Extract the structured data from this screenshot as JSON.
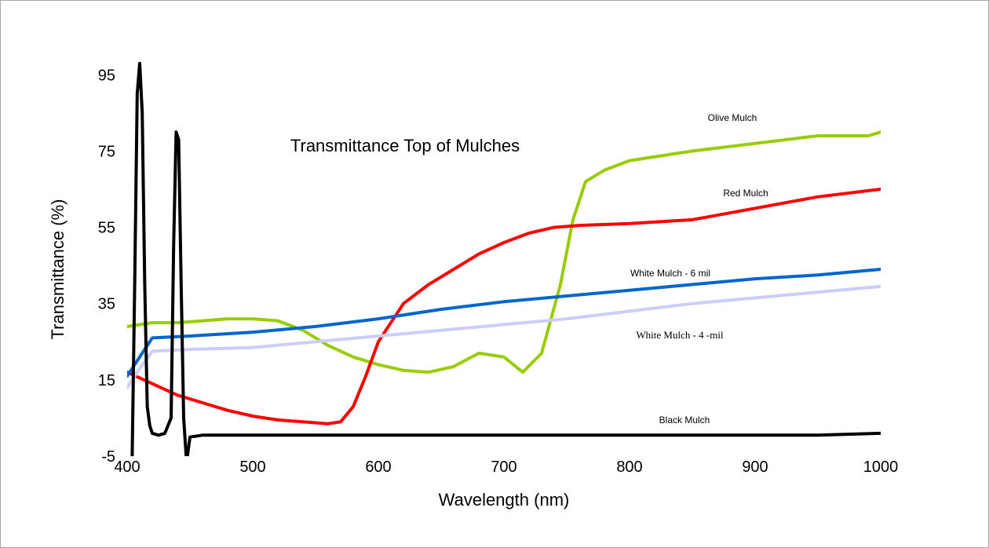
{
  "chart_data": {
    "type": "line",
    "title": "Transmittance Top of Mulches",
    "xlabel": "Wavelength (nm)",
    "ylabel": "Transmittance (%)",
    "xlim": [
      400,
      1000
    ],
    "ylim": [
      -5,
      100
    ],
    "x_ticks": [
      "400",
      "500",
      "600",
      "700",
      "800",
      "900",
      "1000"
    ],
    "y_ticks": [
      "-5",
      "15",
      "35",
      "55",
      "75",
      "95"
    ],
    "grid": false,
    "legend": "none",
    "series": [
      {
        "name": "Olive Mulch",
        "color": "#99cc00",
        "x": [
          400,
          420,
          440,
          460,
          480,
          500,
          520,
          540,
          560,
          580,
          600,
          620,
          640,
          660,
          680,
          700,
          715,
          730,
          745,
          755,
          765,
          780,
          800,
          850,
          900,
          950,
          990,
          1000
        ],
        "y": [
          29,
          30,
          30,
          30.5,
          31,
          31,
          30.5,
          28,
          24,
          21,
          19,
          17.5,
          17,
          18.5,
          22,
          21,
          17,
          22,
          40,
          57,
          67,
          70,
          72.5,
          75,
          77,
          79,
          79,
          80
        ]
      },
      {
        "name": "Red Mulch",
        "color": "#ff0000",
        "x": [
          400,
          420,
          440,
          460,
          480,
          500,
          520,
          540,
          560,
          570,
          580,
          590,
          600,
          620,
          640,
          660,
          680,
          700,
          720,
          740,
          760,
          800,
          850,
          900,
          950,
          1000
        ],
        "y": [
          17,
          14,
          11,
          9,
          7,
          5.5,
          4.5,
          4,
          3.5,
          4,
          8,
          16,
          25,
          35,
          40,
          44,
          48,
          51,
          53.5,
          55,
          55.5,
          56,
          57,
          60,
          63,
          65
        ]
      },
      {
        "name": "White Mulch - 6 mil",
        "color": "#0066cc",
        "x": [
          400,
          410,
          420,
          450,
          500,
          550,
          600,
          650,
          700,
          750,
          800,
          850,
          900,
          950,
          1000
        ],
        "y": [
          16,
          21,
          26,
          26.5,
          27.5,
          29,
          31,
          33.5,
          35.5,
          37,
          38.5,
          40,
          41.5,
          42.5,
          44
        ]
      },
      {
        "name": "White Mulch - 4 -mil",
        "color": "#ccccff",
        "x": [
          400,
          410,
          420,
          450,
          500,
          550,
          600,
          650,
          700,
          750,
          800,
          850,
          900,
          950,
          1000
        ],
        "y": [
          13,
          18,
          22.5,
          23,
          23.5,
          25,
          26.5,
          28,
          29.5,
          31,
          33,
          35,
          36.5,
          38,
          39.5
        ]
      },
      {
        "name": "Black Mulch",
        "color": "#000000",
        "x": [
          404,
          406,
          408,
          410,
          412,
          414,
          416,
          418,
          420,
          425,
          430,
          435,
          437,
          439,
          441,
          443,
          445,
          447,
          448,
          450,
          460,
          500,
          600,
          700,
          800,
          900,
          950,
          1000
        ],
        "y": [
          -5,
          40,
          90,
          98,
          85,
          40,
          8,
          3,
          1,
          0.5,
          1,
          5,
          50,
          80,
          78,
          40,
          5,
          -5,
          -5,
          0,
          0.5,
          0.5,
          0.5,
          0.5,
          0.5,
          0.5,
          0.5,
          1
        ]
      }
    ]
  }
}
